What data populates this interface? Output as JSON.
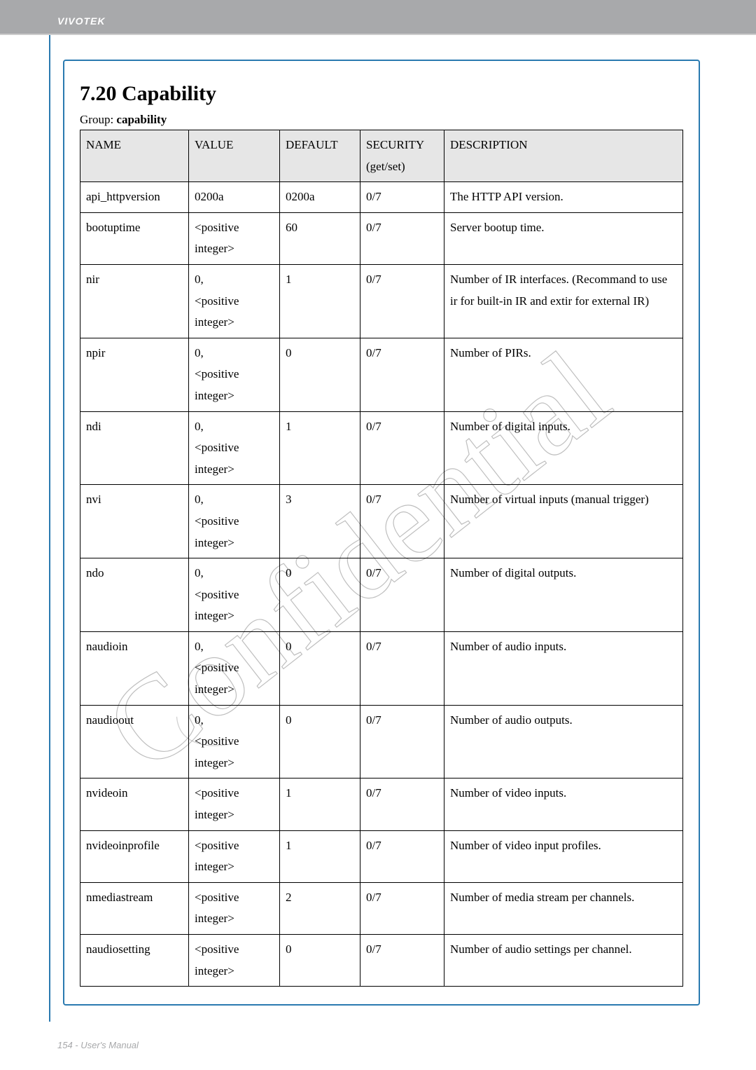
{
  "header": {
    "brand": "VIVOTEK"
  },
  "section": {
    "title": "7.20 Capability",
    "group_prefix": "Group: ",
    "group_name": "capability"
  },
  "table": {
    "columns": [
      "NAME",
      "VALUE",
      "DEFAULT",
      "SECURITY (get/set)",
      "DESCRIPTION"
    ],
    "header_row1": [
      "NAME",
      "VALUE",
      "DEFAULT",
      "SECURITY",
      "DESCRIPTION"
    ],
    "header_row2": [
      "",
      "",
      "",
      "(get/set)",
      ""
    ],
    "rows": [
      {
        "name": "api_httpversion",
        "value": "0200a",
        "default": "0200a",
        "security": "0/7",
        "desc": "The HTTP API version."
      },
      {
        "name": "bootuptime",
        "value": "<positive integer>",
        "default": "60",
        "security": "0/7",
        "desc": "Server bootup time."
      },
      {
        "name": "nir",
        "value": "0, <positive integer>",
        "default": "1",
        "security": "0/7",
        "desc": "Number of IR interfaces. (Recommand to use ir for built-in IR and extir for external IR)"
      },
      {
        "name": "npir",
        "value": "0, <positive integer>",
        "default": "0",
        "security": "0/7",
        "desc": "Number of PIRs."
      },
      {
        "name": "ndi",
        "value": "0, <positive integer>",
        "default": "1",
        "security": "0/7",
        "desc": "Number of digital inputs."
      },
      {
        "name": "nvi",
        "value": "0, <positive integer>",
        "default": "3",
        "security": "0/7",
        "desc": "Number of virtual inputs (manual trigger)"
      },
      {
        "name": "ndo",
        "value": "0, <positive integer>",
        "default": "0",
        "security": "0/7",
        "desc": "Number of digital outputs."
      },
      {
        "name": "naudioin",
        "value": "0, <positive integer>",
        "default": "0",
        "security": "0/7",
        "desc": "Number of audio inputs."
      },
      {
        "name": "naudioout",
        "value": "0, <positive integer>",
        "default": "0",
        "security": "0/7",
        "desc": "Number of audio outputs."
      },
      {
        "name": "nvideoin",
        "value": "<positive integer>",
        "default": "1",
        "security": "0/7",
        "desc": "Number of video inputs."
      },
      {
        "name": "nvideoinprofile",
        "value": "<positive integer>",
        "default": "1",
        "security": "0/7",
        "desc": "Number of video input profiles."
      },
      {
        "name": "nmediastream",
        "value": "<positive integer>",
        "default": "2",
        "security": "0/7",
        "desc": "Number of media stream per channels."
      },
      {
        "name": "naudiosetting",
        "value": "<positive integer>",
        "default": "0",
        "security": "0/7",
        "desc": "Number of audio settings per channel."
      }
    ]
  },
  "footer": {
    "text": "154 - User's Manual"
  },
  "watermark": {
    "text": "Confidential",
    "stroke": "#7f7f7f",
    "stroke_width": 2
  }
}
